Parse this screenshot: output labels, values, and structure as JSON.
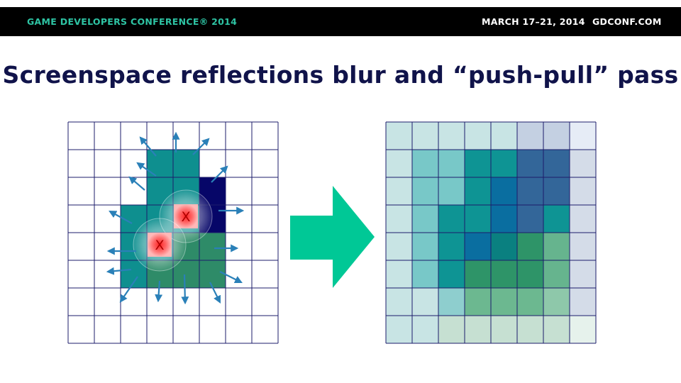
{
  "header": {
    "conference": "GAME DEVELOPERS CONFERENCE® 2014",
    "dates": "MARCH 17–21, 2014",
    "website": "GDCONF.COM"
  },
  "slide": {
    "title": "Screenspace reflections blur and “push-pull” pass"
  },
  "figure": {
    "left_grid": {
      "rows": 8,
      "cols": 8,
      "line_color": "#1c1c6b",
      "cells": [
        [
          "",
          "",
          "",
          "",
          "",
          "",
          "",
          ""
        ],
        [
          "",
          "",
          "",
          "#0e8f8f",
          "#0e8f8f",
          "",
          "",
          ""
        ],
        [
          "",
          "",
          "",
          "#0e8f8f",
          "#0e8f8f",
          "#060668",
          "",
          ""
        ],
        [
          "",
          "",
          "#0e8f8f",
          "#0e8f8f",
          "#0e8f8f",
          "#060668",
          "",
          ""
        ],
        [
          "",
          "",
          "#0e8f8f",
          "#0e8f8f",
          "#2e8b68",
          "#2e8b68",
          "",
          ""
        ],
        [
          "",
          "",
          "#0e8f8f",
          "#2e8b68",
          "#2e8b68",
          "#2e8b68",
          "",
          ""
        ],
        [
          "",
          "",
          "",
          "",
          "",
          "",
          "",
          ""
        ],
        [
          "",
          "",
          "",
          "",
          "",
          "",
          "",
          ""
        ]
      ],
      "sample_markers": [
        "X",
        "X"
      ],
      "arrow_color": "#2a80b8"
    },
    "right_grid": {
      "rows": 8,
      "cols": 8,
      "line_color": "#1c1c6b",
      "cells": [
        [
          "#c8e4e4",
          "#c8e4e4",
          "#c8e4e4",
          "#c8e4e4",
          "#c8e4e4",
          "#c4d0e2",
          "#c4d0e2",
          "#e6ecf6"
        ],
        [
          "#c8e4e4",
          "#78c8c8",
          "#78c8c8",
          "#0e9494",
          "#0e9494",
          "#336699",
          "#336699",
          "#d4dce8"
        ],
        [
          "#c8e4e4",
          "#78c8c8",
          "#78c8c8",
          "#0e9494",
          "#0a6ea0",
          "#336699",
          "#336699",
          "#d4dce8"
        ],
        [
          "#c8e4e4",
          "#78c8c8",
          "#0e9494",
          "#0e9494",
          "#0a6ea0",
          "#336699",
          "#0e9494",
          "#d4dce8"
        ],
        [
          "#c8e4e4",
          "#78c8c8",
          "#0e9494",
          "#0a6ea0",
          "#0a8080",
          "#2e9468",
          "#66b48e",
          "#d4dce8"
        ],
        [
          "#c8e4e4",
          "#78c8c8",
          "#0e9494",
          "#2e9468",
          "#2e9468",
          "#2e9468",
          "#66b48e",
          "#d4dce8"
        ],
        [
          "#c8e4e4",
          "#c8e4e4",
          "#8ecece",
          "#6cb890",
          "#6cb890",
          "#6cb890",
          "#8ec8aa",
          "#d4dce8"
        ],
        [
          "#c8e4e4",
          "#c8e4e4",
          "#c6e0d2",
          "#c6e0d2",
          "#c6e0d2",
          "#c6e0d2",
          "#c6e0d2",
          "#e6f2ec"
        ]
      ]
    },
    "arrow_color": "#00c896"
  }
}
